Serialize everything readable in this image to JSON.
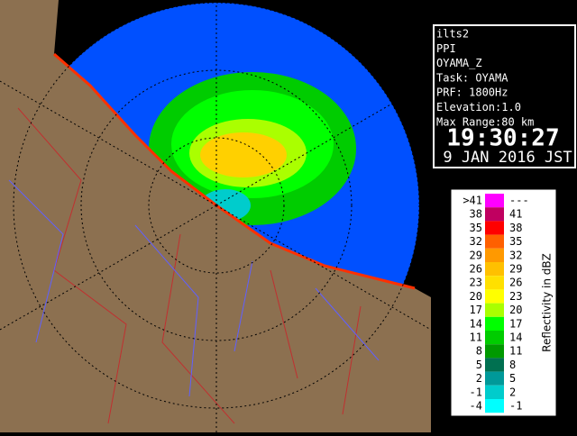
{
  "info": {
    "lines": [
      "ilts2",
      "PPI",
      "OYAMA_Z",
      "Task: OYAMA",
      "PRF: 1800Hz",
      "Elevation:1.0",
      "Max Range:80 km"
    ],
    "time": "19:30:27",
    "date": "9 JAN 2016 JST"
  },
  "legend": {
    "title": "Reflectivity in dBZ",
    "rows": [
      {
        "low": ">41",
        "high": "---",
        "color": "#ff00ff"
      },
      {
        "low": "38",
        "high": "41",
        "color": "#c00060"
      },
      {
        "low": "35",
        "high": "38",
        "color": "#ff0000"
      },
      {
        "low": "32",
        "high": "35",
        "color": "#ff6000"
      },
      {
        "low": "29",
        "high": "32",
        "color": "#ff9900"
      },
      {
        "low": "26",
        "high": "29",
        "color": "#ffc000"
      },
      {
        "low": "23",
        "high": "26",
        "color": "#ffe000"
      },
      {
        "low": "20",
        "high": "23",
        "color": "#ffff00"
      },
      {
        "low": "17",
        "high": "20",
        "color": "#aaff00"
      },
      {
        "low": "14",
        "high": "17",
        "color": "#00ff00"
      },
      {
        "low": "11",
        "high": "14",
        "color": "#00cc00"
      },
      {
        "low": "8",
        "high": "11",
        "color": "#009900"
      },
      {
        "low": "5",
        "high": "8",
        "color": "#007050"
      },
      {
        "low": "2",
        "high": "5",
        "color": "#009999"
      },
      {
        "low": "-1",
        "high": "2",
        "color": "#00cccc"
      },
      {
        "low": "-4",
        "high": "-1",
        "color": "#00ffff"
      }
    ]
  }
}
